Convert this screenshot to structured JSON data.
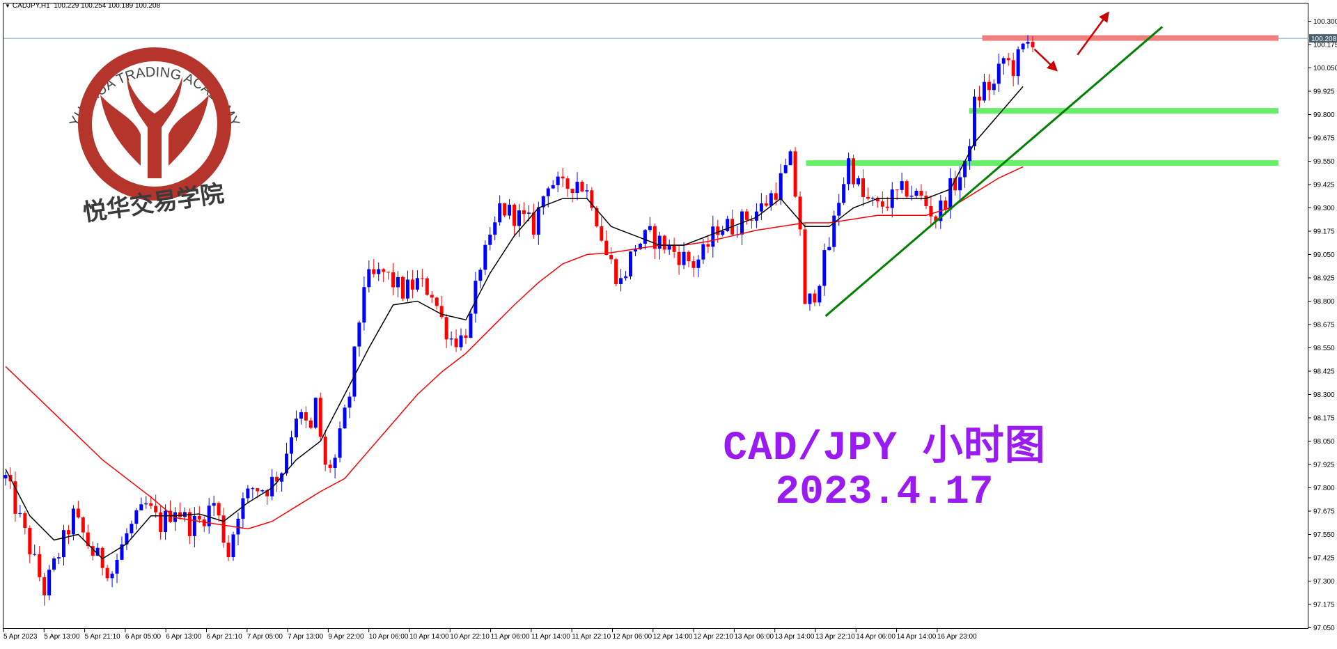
{
  "header": {
    "symbol": "CADJPY,H1",
    "ohlc": "100.229 100.254 100.189 100.208"
  },
  "logo": {
    "ring_text": "YUEHUA TRADING ACADEMY",
    "chinese_name": "悦华交易学院"
  },
  "annotation": {
    "line1": "CAD/JPY 小时图",
    "line2": "2023.4.17"
  },
  "colors": {
    "bull_candle": "#0000ff",
    "bear_candle": "#ff0000",
    "ma_fast": "#000000",
    "ma_slow": "#ff0000",
    "trendline": "#008000",
    "support_zone": "#66ee66",
    "resistance_zone": "#f08080",
    "arrow": "#cc0000",
    "title_text": "#9a1bf2",
    "logo": "#b5342c"
  },
  "chart_data": {
    "type": "candlestick",
    "symbol": "CADJPY",
    "timeframe": "H1",
    "ylim": [
      97.05,
      100.3
    ],
    "y_ticks": [
      "100.300",
      "100.175",
      "100.050",
      "99.925",
      "99.800",
      "99.675",
      "99.550",
      "99.425",
      "99.300",
      "99.175",
      "99.050",
      "98.925",
      "98.800",
      "98.675",
      "98.550",
      "98.425",
      "98.300",
      "98.175",
      "98.050",
      "97.925",
      "97.800",
      "97.675",
      "97.550",
      "97.425",
      "97.300",
      "97.175",
      "97.050"
    ],
    "current_price_label": "100.208",
    "x_ticks": [
      "5 Apr 2023",
      "5 Apr 13:00",
      "5 Apr 21:10",
      "6 Apr 05:00",
      "6 Apr 13:00",
      "6 Apr 21:10",
      "7 Apr 05:00",
      "7 Apr 13:00",
      "9 Apr 22:00",
      "10 Apr 06:00",
      "10 Apr 14:00",
      "10 Apr 22:10",
      "11 Apr 06:00",
      "11 Apr 14:00",
      "11 Apr 22:10",
      "12 Apr 06:00",
      "12 Apr 14:00",
      "12 Apr 22:10",
      "13 Apr 06:00",
      "13 Apr 14:00",
      "13 Apr 22:10",
      "14 Apr 06:00",
      "14 Apr 14:00",
      "16 Apr 23:00"
    ],
    "candle_count": 200,
    "close_path": [
      [
        0,
        97.85
      ],
      [
        8,
        97.55
      ],
      [
        16,
        97.25
      ],
      [
        22,
        97.45
      ],
      [
        28,
        97.65
      ],
      [
        36,
        97.45
      ],
      [
        44,
        97.35
      ],
      [
        50,
        97.55
      ],
      [
        58,
        97.7
      ],
      [
        64,
        97.6
      ],
      [
        70,
        97.7
      ],
      [
        76,
        97.6
      ],
      [
        80,
        97.62
      ],
      [
        86,
        97.72
      ],
      [
        92,
        97.45
      ],
      [
        96,
        97.68
      ],
      [
        102,
        97.8
      ],
      [
        108,
        97.8
      ],
      [
        114,
        97.9
      ],
      [
        120,
        98.2
      ],
      [
        126,
        98.1
      ],
      [
        128,
        98.25
      ],
      [
        132,
        97.9
      ],
      [
        136,
        97.95
      ],
      [
        142,
        98.3
      ],
      [
        148,
        98.9
      ],
      [
        156,
        98.95
      ],
      [
        164,
        98.85
      ],
      [
        170,
        98.9
      ],
      [
        176,
        98.85
      ],
      [
        180,
        98.7
      ],
      [
        184,
        98.6
      ],
      [
        188,
        98.6
      ],
      [
        192,
        98.7
      ],
      [
        196,
        99.0
      ],
      [
        200,
        99.1
      ],
      [
        204,
        99.3
      ],
      [
        212,
        99.25
      ],
      [
        218,
        99.2
      ],
      [
        224,
        99.45
      ],
      [
        230,
        99.4
      ],
      [
        236,
        99.45
      ],
      [
        242,
        99.35
      ],
      [
        248,
        99.05
      ],
      [
        254,
        98.9
      ],
      [
        260,
        99.1
      ],
      [
        266,
        99.15
      ],
      [
        272,
        99.1
      ],
      [
        278,
        99.05
      ],
      [
        284,
        99.0
      ],
      [
        288,
        99.05
      ],
      [
        294,
        99.2
      ],
      [
        300,
        99.2
      ],
      [
        306,
        99.25
      ],
      [
        312,
        99.3
      ],
      [
        318,
        99.4
      ],
      [
        322,
        99.5
      ],
      [
        324,
        99.55
      ],
      [
        328,
        99.2
      ],
      [
        330,
        98.75
      ],
      [
        334,
        98.85
      ],
      [
        340,
        99.1
      ],
      [
        344,
        99.35
      ],
      [
        348,
        99.55
      ],
      [
        354,
        99.35
      ],
      [
        360,
        99.3
      ],
      [
        366,
        99.35
      ],
      [
        372,
        99.4
      ],
      [
        378,
        99.35
      ],
      [
        384,
        99.25
      ],
      [
        390,
        99.4
      ],
      [
        396,
        99.5
      ],
      [
        400,
        99.85
      ],
      [
        404,
        99.95
      ],
      [
        408,
        99.95
      ],
      [
        412,
        100.1
      ],
      [
        416,
        100.05
      ],
      [
        420,
        100.15
      ],
      [
        424,
        100.21
      ]
    ],
    "ma_fast": [
      [
        0,
        97.9
      ],
      [
        10,
        97.65
      ],
      [
        20,
        97.52
      ],
      [
        30,
        97.55
      ],
      [
        40,
        97.42
      ],
      [
        50,
        97.5
      ],
      [
        60,
        97.65
      ],
      [
        70,
        97.65
      ],
      [
        80,
        97.66
      ],
      [
        90,
        97.62
      ],
      [
        100,
        97.72
      ],
      [
        110,
        97.8
      ],
      [
        120,
        97.95
      ],
      [
        130,
        98.05
      ],
      [
        140,
        98.3
      ],
      [
        150,
        98.55
      ],
      [
        160,
        98.78
      ],
      [
        170,
        98.8
      ],
      [
        180,
        98.73
      ],
      [
        190,
        98.7
      ],
      [
        200,
        98.95
      ],
      [
        210,
        99.15
      ],
      [
        220,
        99.3
      ],
      [
        230,
        99.35
      ],
      [
        240,
        99.35
      ],
      [
        250,
        99.2
      ],
      [
        260,
        99.15
      ],
      [
        270,
        99.1
      ],
      [
        280,
        99.1
      ],
      [
        290,
        99.15
      ],
      [
        300,
        99.2
      ],
      [
        310,
        99.25
      ],
      [
        320,
        99.35
      ],
      [
        330,
        99.2
      ],
      [
        340,
        99.2
      ],
      [
        350,
        99.3
      ],
      [
        360,
        99.35
      ],
      [
        370,
        99.35
      ],
      [
        380,
        99.35
      ],
      [
        390,
        99.4
      ],
      [
        400,
        99.65
      ],
      [
        410,
        99.8
      ],
      [
        420,
        99.95
      ]
    ],
    "ma_slow": [
      [
        0,
        98.45
      ],
      [
        20,
        98.2
      ],
      [
        40,
        97.95
      ],
      [
        60,
        97.75
      ],
      [
        70,
        97.64
      ],
      [
        80,
        97.62
      ],
      [
        90,
        97.6
      ],
      [
        100,
        97.58
      ],
      [
        110,
        97.62
      ],
      [
        120,
        97.7
      ],
      [
        130,
        97.78
      ],
      [
        140,
        97.85
      ],
      [
        150,
        98.0
      ],
      [
        160,
        98.15
      ],
      [
        170,
        98.3
      ],
      [
        180,
        98.42
      ],
      [
        190,
        98.52
      ],
      [
        200,
        98.65
      ],
      [
        210,
        98.78
      ],
      [
        220,
        98.9
      ],
      [
        230,
        99.0
      ],
      [
        240,
        99.05
      ],
      [
        250,
        99.06
      ],
      [
        260,
        99.08
      ],
      [
        270,
        99.1
      ],
      [
        280,
        99.1
      ],
      [
        290,
        99.12
      ],
      [
        300,
        99.15
      ],
      [
        310,
        99.18
      ],
      [
        320,
        99.2
      ],
      [
        330,
        99.22
      ],
      [
        340,
        99.22
      ],
      [
        350,
        99.24
      ],
      [
        360,
        99.26
      ],
      [
        370,
        99.26
      ],
      [
        380,
        99.26
      ],
      [
        390,
        99.3
      ],
      [
        400,
        99.38
      ],
      [
        410,
        99.46
      ],
      [
        420,
        99.52
      ]
    ],
    "support_lines": [
      {
        "level": 99.82,
        "from": 0.74,
        "to": 0.977
      },
      {
        "level": 99.54,
        "from": 0.615,
        "to": 0.977
      }
    ],
    "resistance_line": {
      "level": 100.21,
      "from": 0.75,
      "to": 0.977
    },
    "trendline": {
      "from": [
        0.63,
        98.72
      ],
      "to": [
        0.888,
        100.27
      ]
    },
    "arrows": [
      {
        "direction": "down",
        "from": [
          0.79,
          100.15
        ],
        "to": [
          0.805,
          100.05
        ]
      },
      {
        "direction": "up",
        "from": [
          0.823,
          100.12
        ],
        "to": [
          0.845,
          100.33
        ]
      }
    ]
  }
}
